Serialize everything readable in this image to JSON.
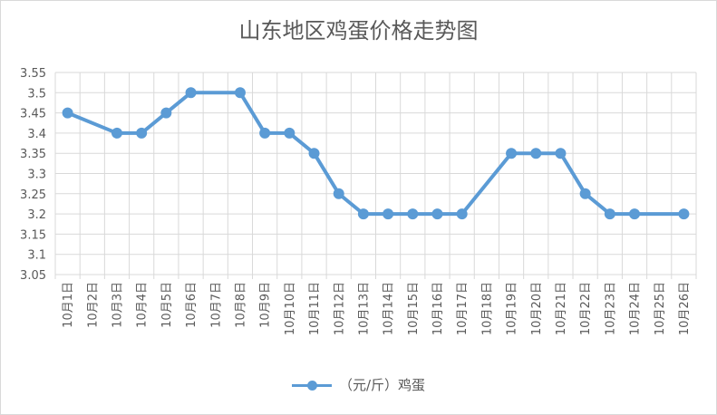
{
  "chart_data": {
    "type": "line",
    "title": "山东地区鸡蛋价格走势图",
    "xlabel": "",
    "ylabel": "",
    "categories": [
      "10月1日",
      "10月2日",
      "10月3日",
      "10月4日",
      "10月5日",
      "10月6日",
      "10月7日",
      "10月8日",
      "10月9日",
      "10月10日",
      "10月11日",
      "10月12日",
      "10月13日",
      "10月14日",
      "10月15日",
      "10月16日",
      "10月17日",
      "10月18日",
      "10月19日",
      "10月20日",
      "10月21日",
      "10月22日",
      "10月23日",
      "10月24日",
      "10月25日",
      "10月26日"
    ],
    "series": [
      {
        "name": "（元/斤）鸡蛋",
        "values": [
          3.45,
          null,
          3.4,
          3.4,
          3.45,
          3.5,
          null,
          3.5,
          3.4,
          3.4,
          3.35,
          3.25,
          3.2,
          3.2,
          3.2,
          3.2,
          3.2,
          null,
          3.35,
          3.35,
          3.35,
          3.25,
          3.2,
          3.2,
          null,
          3.2
        ]
      }
    ],
    "ylim": [
      3.05,
      3.55
    ],
    "yticks": [
      "3.05",
      "3.1",
      "3.15",
      "3.2",
      "3.25",
      "3.3",
      "3.35",
      "3.4",
      "3.45",
      "3.5",
      "3.55"
    ],
    "grid": true,
    "legend_position": "bottom",
    "line_color": "#5b9bd5"
  }
}
